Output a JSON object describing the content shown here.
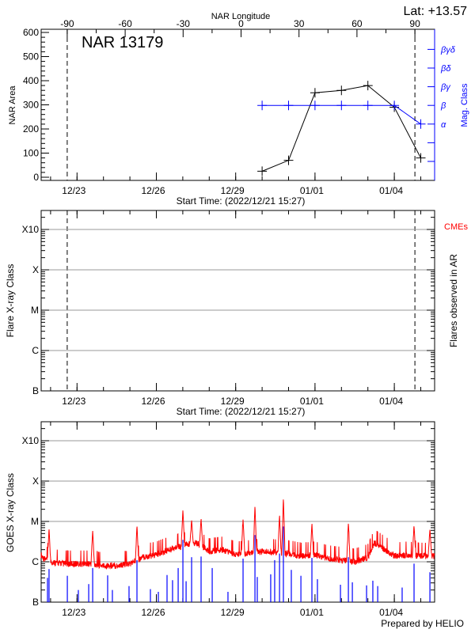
{
  "header": {
    "longitude_label": "NAR Longitude",
    "latitude": "Lat: +13.57",
    "region": "NAR 13179"
  },
  "footer": "Prepared by HELIO",
  "colors": {
    "area": "#000000",
    "mag_class": "#0000ff",
    "goes_long": "#ff0000",
    "goes_short": "#0000ff",
    "cme": "#ff0000",
    "grid": "#999999"
  },
  "chart_data": [
    {
      "type": "line",
      "title": "NAR 13179",
      "xlabel": "Start Time: (2022/12/21 15:27)",
      "start_time": "2022/12/21 15:27",
      "x_tick_labels": [
        {
          "date": "2022-12-23T00:00",
          "label": "12/23"
        },
        {
          "date": "2022-12-26T00:00",
          "label": "12/26"
        },
        {
          "date": "2022-12-29T00:00",
          "label": "12/29"
        },
        {
          "date": "2023-01-01T00:00",
          "label": "01/01"
        },
        {
          "date": "2023-01-04T00:00",
          "label": "01/04"
        }
      ],
      "top_axis": {
        "label": "NAR Longitude",
        "ticks": [
          -90,
          -60,
          -30,
          0,
          30,
          60,
          90
        ],
        "range": [
          -90,
          90
        ]
      },
      "limb_markers_longitude": [
        -90,
        90
      ],
      "ylabel": "NAR Area",
      "ylim": [
        0,
        600
      ],
      "y_ticks": [
        0,
        100,
        200,
        300,
        400,
        500,
        600
      ],
      "right_axis": {
        "label": "Mag. Class",
        "classes": [
          "α",
          "β",
          "βγ",
          "βδ",
          "βγδ"
        ]
      },
      "series": [
        {
          "key": "area",
          "x": [
            "2022-12-30T00:00",
            "2022-12-31T00:00",
            "2023-01-01T00:00",
            "2023-01-02T00:00",
            "2023-01-03T00:00",
            "2023-01-04T00:00",
            "2023-01-05T00:00"
          ],
          "values": [
            25,
            70,
            350,
            360,
            380,
            290,
            80
          ]
        },
        {
          "key": "mag_class",
          "x": [
            "2022-12-30T00:00",
            "2022-12-31T00:00",
            "2023-01-01T00:00",
            "2023-01-02T00:00",
            "2023-01-03T00:00",
            "2023-01-04T00:00",
            "2023-01-05T00:00"
          ],
          "values": [
            "β",
            "β",
            "β",
            "β",
            "β",
            "β",
            "α"
          ]
        }
      ]
    },
    {
      "type": "scatter",
      "xlabel": "Start Time: (2022/12/21 15:27)",
      "ylabel": "Flare X-ray Class",
      "right_label": "Flares observed in AR",
      "legend": "CMEs",
      "y_scale": "log",
      "y_tick_labels": [
        "B",
        "C",
        "M",
        "X",
        "X10"
      ],
      "grid": true,
      "flares": [],
      "cmes": []
    },
    {
      "type": "line",
      "ylabel": "GOES X-ray Class",
      "y_scale": "log",
      "y_tick_labels": [
        "B",
        "C",
        "M",
        "X",
        "X10"
      ],
      "y_flux_W_m2": [
        1e-07,
        1e-06,
        1e-05,
        0.0001,
        0.001
      ],
      "grid": true,
      "long_channel_background": [
        [
          "2022-12-21T15:27",
          1.5e-06
        ],
        [
          "2022-12-21T18:00",
          1.2e-06
        ],
        [
          "2022-12-22T00:00",
          1e-06
        ],
        [
          "2022-12-22T12:00",
          9e-07
        ],
        [
          "2022-12-23T00:00",
          9e-07
        ],
        [
          "2022-12-23T12:00",
          9e-07
        ],
        [
          "2022-12-24T00:00",
          8e-07
        ],
        [
          "2022-12-24T12:00",
          8e-07
        ],
        [
          "2022-12-25T00:00",
          9e-07
        ],
        [
          "2022-12-25T12:00",
          1.3e-06
        ],
        [
          "2022-12-26T00:00",
          1.5e-06
        ],
        [
          "2022-12-26T12:00",
          2e-06
        ],
        [
          "2022-12-27T00:00",
          2.5e-06
        ],
        [
          "2022-12-27T12:00",
          3e-06
        ],
        [
          "2022-12-28T00:00",
          1.8e-06
        ],
        [
          "2022-12-28T12:00",
          2e-06
        ],
        [
          "2022-12-29T00:00",
          1.5e-06
        ],
        [
          "2022-12-29T12:00",
          1.6e-06
        ],
        [
          "2022-12-30T00:00",
          1.8e-06
        ],
        [
          "2022-12-30T12:00",
          1.7e-06
        ],
        [
          "2022-12-31T00:00",
          1.6e-06
        ],
        [
          "2022-12-31T12:00",
          1.4e-06
        ],
        [
          "2023-01-01T00:00",
          1.5e-06
        ],
        [
          "2023-01-01T12:00",
          1.2e-06
        ],
        [
          "2023-01-02T00:00",
          1.1e-06
        ],
        [
          "2023-01-02T12:00",
          1e-06
        ],
        [
          "2023-01-03T00:00",
          1.3e-06
        ],
        [
          "2023-01-03T06:00",
          3e-06
        ],
        [
          "2023-01-03T18:00",
          1.8e-06
        ],
        [
          "2023-01-04T00:00",
          1.4e-06
        ],
        [
          "2023-01-04T12:00",
          1.5e-06
        ],
        [
          "2023-01-05T00:00",
          1.4e-06
        ],
        [
          "2023-01-05T13:00",
          1.4e-06
        ]
      ],
      "long_channel_peaks": [
        [
          "2022-12-21T22:36",
          6.6e-06
        ],
        [
          "2022-12-23T14:12",
          6.2e-06
        ],
        [
          "2022-12-25T06:24",
          8e-06
        ],
        [
          "2022-12-27T00:06",
          2e-05
        ],
        [
          "2022-12-27T08:00",
          1.1e-05
        ],
        [
          "2022-12-27T16:36",
          1.2e-05
        ],
        [
          "2022-12-29T06:42",
          1.2e-05
        ],
        [
          "2022-12-29T17:30",
          2.5e-05
        ],
        [
          "2022-12-30T15:48",
          1.5e-05
        ],
        [
          "2022-12-30T19:18",
          3.9e-05
        ],
        [
          "2022-12-31T21:12",
          9e-06
        ],
        [
          "2023-01-02T06:18",
          9.5e-06
        ],
        [
          "2023-01-04T17:54",
          8e-06
        ],
        [
          "2023-01-05T08:18",
          6.5e-06
        ]
      ],
      "short_channel_spikes": [
        [
          "2022-12-21T21:12",
          4e-07
        ],
        [
          "2022-12-21T22:36",
          6.6e-07
        ],
        [
          "2022-12-22T15:12",
          4.5e-07
        ],
        [
          "2022-12-23T01:12",
          2e-07
        ],
        [
          "2022-12-23T10:36",
          2.8e-07
        ],
        [
          "2022-12-23T14:12",
          7e-07
        ],
        [
          "2022-12-24T03:48",
          4.6e-07
        ],
        [
          "2022-12-24T08:06",
          2e-07
        ],
        [
          "2022-12-24T23:12",
          2.5e-07
        ],
        [
          "2022-12-25T06:24",
          1.1e-06
        ],
        [
          "2022-12-25T18:36",
          2.1e-07
        ],
        [
          "2022-12-26T01:48",
          1.8e-07
        ],
        [
          "2022-12-26T09:42",
          4.7e-07
        ],
        [
          "2022-12-26T14:42",
          3.5e-07
        ],
        [
          "2022-12-26T19:48",
          7e-07
        ],
        [
          "2022-12-27T00:06",
          3.5e-06
        ],
        [
          "2022-12-27T03:00",
          3.3e-07
        ],
        [
          "2022-12-27T08:00",
          1.3e-06
        ],
        [
          "2022-12-27T16:36",
          1.35e-06
        ],
        [
          "2022-12-28T02:42",
          7e-07
        ],
        [
          "2022-12-28T17:00",
          1.8e-07
        ],
        [
          "2022-12-29T06:42",
          1.2e-06
        ],
        [
          "2022-12-29T17:30",
          4.6e-06
        ],
        [
          "2022-12-29T19:36",
          4.2e-07
        ],
        [
          "2022-12-30T07:48",
          4.9e-07
        ],
        [
          "2022-12-30T11:24",
          1.1e-06
        ],
        [
          "2022-12-30T15:48",
          1.6e-06
        ],
        [
          "2022-12-30T19:18",
          7.5e-06
        ],
        [
          "2022-12-31T02:30",
          6.3e-07
        ],
        [
          "2022-12-31T11:12",
          4.5e-07
        ],
        [
          "2022-12-31T21:12",
          1.25e-06
        ],
        [
          "2023-01-01T02:12",
          3.7e-07
        ],
        [
          "2023-01-01T23:06",
          2.7e-07
        ],
        [
          "2023-01-02T06:18",
          1.3e-06
        ],
        [
          "2023-01-02T09:54",
          3.1e-07
        ],
        [
          "2023-01-02T22:48",
          2.6e-07
        ],
        [
          "2023-01-03T04:30",
          3.4e-07
        ],
        [
          "2023-01-03T08:54",
          2.5e-07
        ],
        [
          "2023-01-04T07:06",
          2.3e-07
        ],
        [
          "2023-01-04T17:54",
          9e-07
        ],
        [
          "2023-01-05T08:18",
          5.5e-07
        ]
      ]
    }
  ]
}
